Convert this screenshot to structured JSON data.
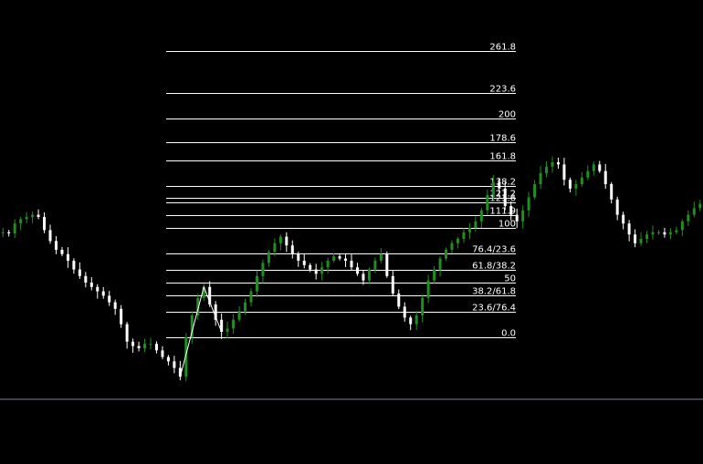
{
  "colors": {
    "background": "#000000",
    "bull_candle": "#1f8f1f",
    "bear_candle": "#ffffff",
    "fib_line": "#ffffff",
    "baseline": "#6f86a8"
  },
  "chart_data": {
    "type": "candlestick",
    "overlay": "fibonacci",
    "fib_levels": [
      {
        "value": 261.8,
        "label": "261.8"
      },
      {
        "value": 223.6,
        "label": "223.6"
      },
      {
        "value": 200,
        "label": "200"
      },
      {
        "value": 178.6,
        "label": "178.6"
      },
      {
        "value": 161.8,
        "label": "161.8"
      },
      {
        "value": 138.2,
        "label": "138.2"
      },
      {
        "value": 127.2,
        "label": "127.2"
      },
      {
        "value": 123.6,
        "label": "123.6"
      },
      {
        "value": 111.9,
        "label": "111.9"
      },
      {
        "value": 100,
        "label": "100"
      },
      {
        "value": 76.4,
        "label": "76.4/23.6"
      },
      {
        "value": 61.8,
        "label": "61.8/38.2"
      },
      {
        "value": 50,
        "label": "50"
      },
      {
        "value": 38.2,
        "label": "38.2/61.8"
      },
      {
        "value": 23.6,
        "label": "23.6/76.4"
      },
      {
        "value": 0,
        "label": "0.0"
      }
    ],
    "close_path": [
      0.96,
      0.95,
      1.04,
      1.08,
      1.1,
      1.12,
      1.1,
      0.98,
      0.88,
      0.8,
      0.76,
      0.7,
      0.62,
      0.56,
      0.5,
      0.46,
      0.42,
      0.38,
      0.32,
      0.26,
      0.12,
      -0.04,
      -0.08,
      -0.1,
      -0.06,
      -0.06,
      -0.12,
      -0.18,
      -0.22,
      -0.28,
      -0.36,
      0.0,
      0.2,
      0.36,
      0.46,
      0.3,
      0.16,
      0.05,
      0.08,
      0.16,
      0.24,
      0.32,
      0.42,
      0.56,
      0.68,
      0.78,
      0.86,
      0.92,
      0.84,
      0.76,
      0.7,
      0.66,
      0.62,
      0.58,
      0.64,
      0.7,
      0.74,
      0.72,
      0.7,
      0.64,
      0.58,
      0.52,
      0.62,
      0.7,
      0.76,
      0.56,
      0.4,
      0.28,
      0.18,
      0.12,
      0.2,
      0.36,
      0.52,
      0.62,
      0.72,
      0.8,
      0.86,
      0.9,
      0.96,
      1.0,
      1.06,
      1.16,
      1.3,
      1.42,
      1.36,
      1.2,
      1.12,
      1.06,
      1.16,
      1.28,
      1.4,
      1.5,
      1.56,
      1.6,
      1.58,
      1.44,
      1.36,
      1.4,
      1.46,
      1.52,
      1.58,
      1.52,
      1.4,
      1.26,
      1.12,
      1.04,
      0.94,
      0.86,
      0.9,
      0.94,
      0.96,
      0.96,
      0.94,
      0.96,
      0.98,
      1.06,
      1.12,
      1.18,
      1.22
    ]
  }
}
